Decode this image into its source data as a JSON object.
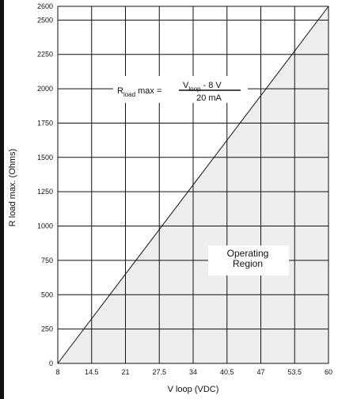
{
  "chart_data": {
    "type": "area",
    "xlabel": "V loop  (VDC)",
    "ylabel": "R load max. (Ohms)",
    "xlim": [
      8,
      60
    ],
    "ylim": [
      0,
      2600
    ],
    "x_ticks": [
      "8",
      "14.5",
      "21",
      "27.5",
      "34",
      "40.5",
      "47",
      "53.5",
      "60"
    ],
    "y_ticks": [
      "0",
      "250",
      "500",
      "750",
      "1000",
      "1250",
      "1500",
      "1750",
      "2000",
      "2250",
      "2500",
      "2600"
    ],
    "grid": true,
    "series": [
      {
        "x": [
          8,
          60
        ],
        "y": [
          0,
          2600
        ]
      }
    ],
    "formula": {
      "lhs_main": "R",
      "lhs_sub": "load",
      "lhs_rest": " max = ",
      "num_main": "V",
      "num_sub": "loop",
      "num_rest": " - 8 V",
      "denominator": "20 mA"
    },
    "annotation": "Operating\nRegion"
  }
}
